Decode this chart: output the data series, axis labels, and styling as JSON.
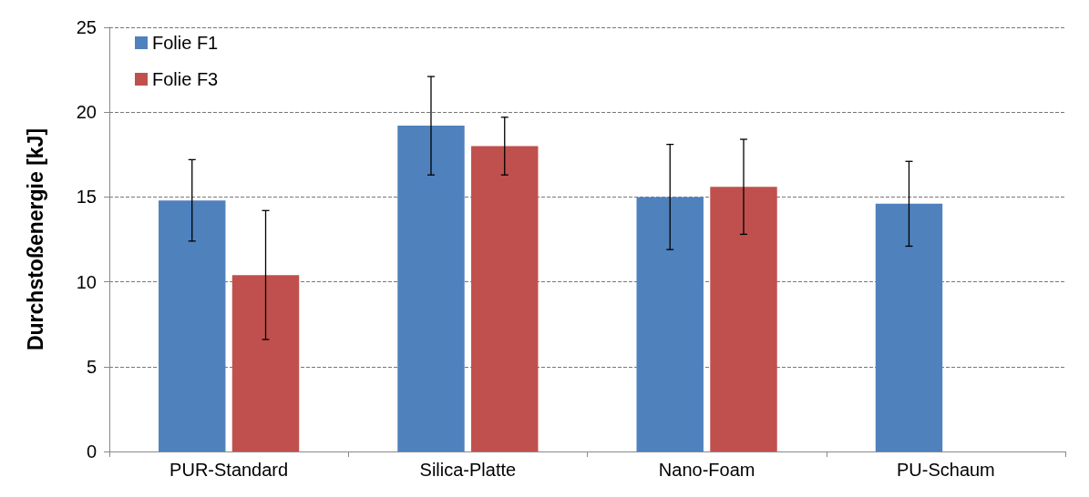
{
  "chart_data": {
    "type": "bar",
    "ylabel": "Durchstoßenergie [kJ]",
    "categories": [
      "PUR-Standard",
      "Silica-Platte",
      "Nano-Foam",
      "PU-Schaum"
    ],
    "series": [
      {
        "name": "Folie F1",
        "color": "#4f81bd",
        "values": [
          14.8,
          19.2,
          15.0,
          14.6
        ],
        "errors": [
          [
            12.4,
            17.2
          ],
          [
            16.3,
            22.1
          ],
          [
            11.9,
            18.1
          ],
          [
            12.1,
            17.1
          ]
        ]
      },
      {
        "name": "Folie F3",
        "color": "#c0504d",
        "values": [
          10.4,
          18.0,
          15.6,
          null
        ],
        "errors": [
          [
            6.6,
            14.2
          ],
          [
            16.3,
            19.7
          ],
          [
            12.8,
            18.4
          ],
          null
        ]
      }
    ],
    "ylim": [
      0,
      25
    ],
    "yticks": [
      0,
      5,
      10,
      15,
      20,
      25
    ],
    "grid": "y",
    "legend": "top left"
  }
}
